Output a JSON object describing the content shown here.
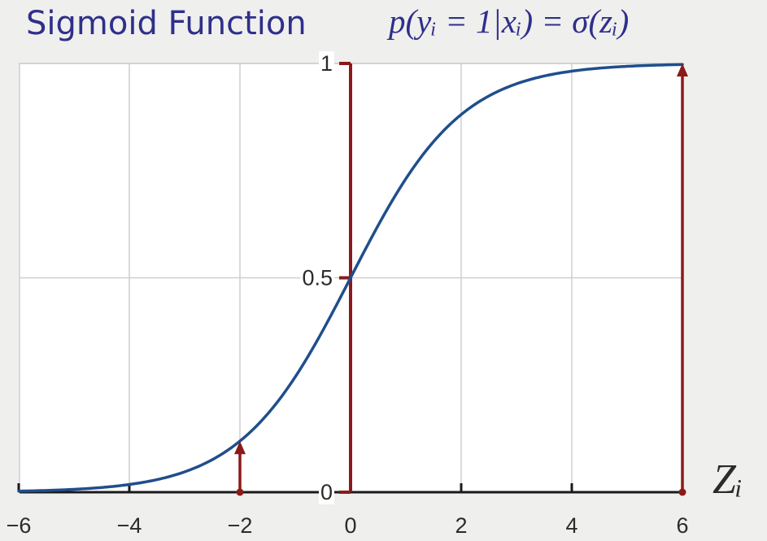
{
  "chart_data": {
    "type": "line",
    "title": "Sigmoid Function",
    "formula": "p(yᵢ = 1|xᵢ) = σ(zᵢ)",
    "xlabel": "Zᵢ",
    "ylabel": "",
    "xlim": [
      -6,
      6
    ],
    "ylim": [
      0,
      1
    ],
    "x_ticks": [
      -6,
      -4,
      -2,
      0,
      2,
      4,
      6
    ],
    "x_tick_labels": [
      "−6",
      "−4",
      "−2",
      "0",
      "2",
      "4",
      "6"
    ],
    "y_ticks": [
      0,
      0.5,
      1
    ],
    "y_tick_labels": [
      "0",
      "0.5",
      "1"
    ],
    "grid": true,
    "series": [
      {
        "function": "sigmoid",
        "color": "#1f4e8c",
        "x": [
          -6,
          -5,
          -4,
          -3,
          -2,
          -1,
          0,
          1,
          2,
          3,
          4,
          5,
          6
        ],
        "y": [
          0.0025,
          0.0067,
          0.018,
          0.047,
          0.119,
          0.269,
          0.5,
          0.731,
          0.881,
          0.953,
          0.982,
          0.993,
          0.9975
        ]
      }
    ],
    "arrows": [
      {
        "x": -2,
        "y_from": 0,
        "y_to": 0.119,
        "color": "#8b1a1a"
      },
      {
        "x": 6,
        "y_from": 0,
        "y_to": 1,
        "color": "#8b1a1a"
      }
    ],
    "y_axis_line": {
      "x": 0,
      "color": "#8b1a1a"
    }
  }
}
